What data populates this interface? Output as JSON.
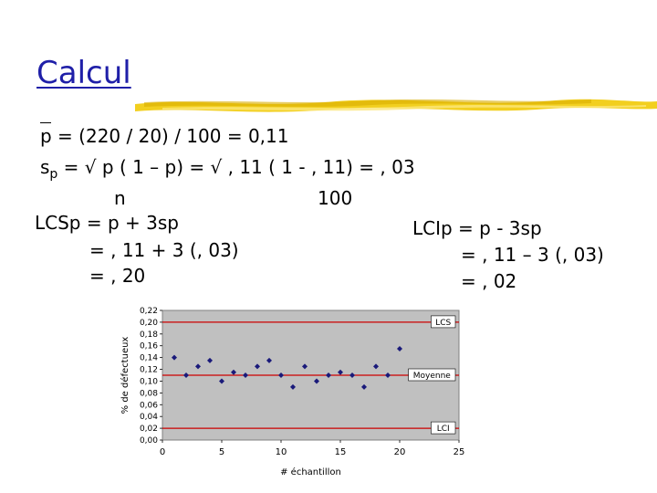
{
  "slide": {
    "title": "Calcul",
    "formula": {
      "p_line": "p = (220 / 20) / 100  = 0,11",
      "sp_label": "s",
      "sp_sub": "p",
      "sp_rest": " = √ p ( 1 – p)  = √ , 11 ( 1 - , 11)  = , 03",
      "denom_n": "n",
      "denom_100": "100",
      "lcs_1": "LCSp = p + 3sp",
      "lcs_2": "= , 11 + 3 (, 03)",
      "lcs_3": "= , 20",
      "lci_1": "LCIp = p - 3sp",
      "lci_2": "= , 11 – 3 (, 03)",
      "lci_3": "= , 02"
    }
  },
  "chart_data": {
    "type": "scatter",
    "xlabel": "# échantillon",
    "ylabel": "% de défectueux",
    "xlim": [
      0,
      25
    ],
    "ylim": [
      0,
      0.22
    ],
    "x_ticks": [
      "0",
      "5",
      "10",
      "15",
      "20",
      "25"
    ],
    "y_ticks": [
      "0,22",
      "0,20",
      "0,18",
      "0,16",
      "0,14",
      "0,12",
      "0,10",
      "0,08",
      "0,06",
      "0,04",
      "0,02",
      "0,00"
    ],
    "grid": false,
    "reference_lines": [
      {
        "label": "LCS",
        "value": 0.2,
        "color": "#cc0000"
      },
      {
        "label": "Moyenne",
        "value": 0.11,
        "color": "#cc0000"
      },
      {
        "label": "LCI",
        "value": 0.02,
        "color": "#cc0000"
      }
    ],
    "series": [
      {
        "color": "#1a1a7a",
        "x": [
          1,
          2,
          3,
          4,
          5,
          6,
          7,
          8,
          9,
          10,
          11,
          12,
          13,
          14,
          15,
          16,
          17,
          18,
          19,
          20
        ],
        "y": [
          0.14,
          0.11,
          0.125,
          0.135,
          0.1,
          0.115,
          0.11,
          0.125,
          0.135,
          0.11,
          0.09,
          0.125,
          0.1,
          0.11,
          0.115,
          0.11,
          0.09,
          0.125,
          0.11,
          0.155
        ]
      }
    ]
  }
}
